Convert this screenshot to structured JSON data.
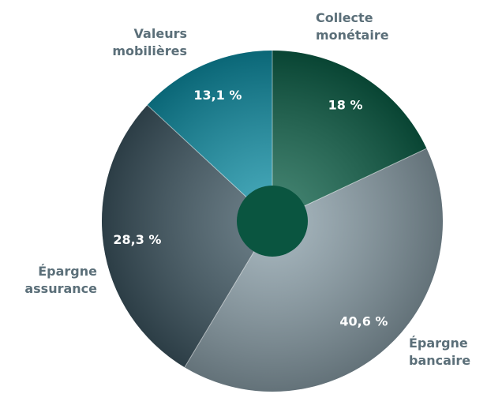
{
  "chart_data": {
    "type": "pie",
    "categories": [
      "Collecte monétaire",
      "Épargne bancaire",
      "Épargne assurance",
      "Valeurs mobilières"
    ],
    "values": [
      18,
      40.6,
      28.3,
      13.1
    ],
    "value_labels": [
      "18 %",
      "40,6 %",
      "28,3 %",
      "13,1 %"
    ],
    "colors": [
      "#0c6249",
      "#8ea3ad",
      "#3f5864",
      "#0f93aa"
    ]
  }
}
